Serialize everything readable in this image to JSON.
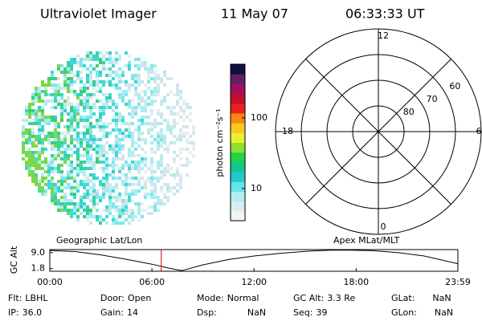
{
  "header": {
    "title": "Ultraviolet Imager",
    "date": "11 May 07",
    "time": "06:33:33 UT"
  },
  "chart_data": [
    {
      "type": "image",
      "palette": [
        "#e8eeee",
        "#cfe7ea",
        "#a8eef2",
        "#7fe6ea",
        "#3fd8d8",
        "#36d0b8",
        "#3ccf73",
        "#7ad84a"
      ]
    },
    {
      "type": "colorbar",
      "label": "photon cm⁻²s⁻¹",
      "log": true,
      "ylim": [
        3.5,
        575
      ],
      "yticks": [
        10,
        100
      ],
      "colors": [
        "#f2f4f4",
        "#d8eef0",
        "#b0eef2",
        "#66e4e8",
        "#22c8cc",
        "#10c890",
        "#22d24a",
        "#8ee030",
        "#e8f030",
        "#f8c820",
        "#f88810",
        "#e82020",
        "#c0102c",
        "#a01060",
        "#602068",
        "#101040"
      ]
    },
    {
      "type": "polar",
      "rlim": [
        90,
        50
      ],
      "rticks": [
        80,
        70,
        60
      ],
      "thetalim": [
        0,
        24
      ],
      "thetaticks": [
        0,
        6,
        12,
        18
      ],
      "thetagrid": [
        0,
        3,
        6,
        9,
        12,
        15,
        18,
        21
      ]
    },
    {
      "type": "line",
      "ylabel": "GC Alt",
      "color": "#000000",
      "x": [
        0,
        1.5,
        3,
        4.5,
        6,
        7,
        7.5,
        7.75,
        8,
        9,
        10.5,
        12,
        13.5,
        15,
        16.5,
        17.5,
        19,
        20.5,
        22,
        23.98
      ],
      "values": [
        10.0,
        9.5,
        8.0,
        6.0,
        3.8,
        2.0,
        1.2,
        0.9,
        1.4,
        3.5,
        5.9,
        7.5,
        8.7,
        9.6,
        10.1,
        10.2,
        9.9,
        9.0,
        7.5,
        4.0
      ],
      "xlim": [
        0,
        23.98
      ],
      "xticks": [
        {
          "value": 0,
          "label": "00:00"
        },
        {
          "value": 6,
          "label": "06:00"
        },
        {
          "value": 12,
          "label": "12:00"
        },
        {
          "value": 18,
          "label": "18:00"
        },
        {
          "value": 23.98,
          "label": "23:59"
        }
      ],
      "ylim": [
        0.6,
        10.4
      ],
      "yticks": [
        1.8,
        {
          "value": 9,
          "label": "9.0"
        }
      ],
      "marker": 6.55,
      "marker_color": "#cc0000",
      "annotations": [
        "Geographic Lat/Lon",
        "Apex MLat/MLT"
      ]
    }
  ],
  "footer": {
    "rows": [
      [
        {
          "label": "Flt:",
          "value": "LBHL"
        },
        {
          "label": "Door:",
          "value": "Open"
        },
        {
          "label": "Mode:",
          "value": "Normal"
        },
        {
          "label": "GC Alt:",
          "value": "3.3 Re"
        },
        {
          "label": "GLat:",
          "value": "NaN"
        }
      ],
      [
        {
          "label": "IP:",
          "value": "36.0"
        },
        {
          "label": "Gain:",
          "value": "14"
        },
        {
          "label": "Dsp:",
          "value": "NaN"
        },
        {
          "label": "Seq:",
          "value": "39"
        },
        {
          "label": "GLon:",
          "value": "NaN"
        }
      ]
    ]
  }
}
